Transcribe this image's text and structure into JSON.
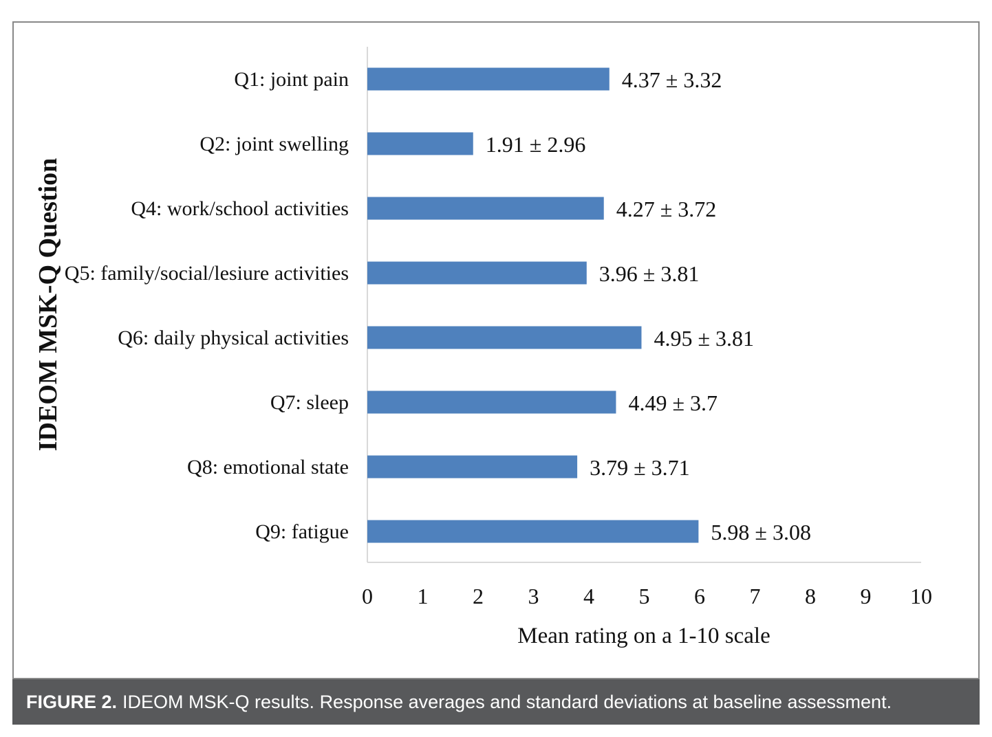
{
  "chart_data": {
    "type": "bar",
    "orientation": "horizontal",
    "categories": [
      "Q1: joint pain",
      "Q2: joint swelling",
      "Q4: work/school activities",
      "Q5: family/social/lesiure activities",
      "Q6: daily physical activities",
      "Q7: sleep",
      "Q8: emotional state",
      "Q9: fatigue"
    ],
    "values": [
      4.37,
      1.91,
      4.27,
      3.96,
      4.95,
      4.49,
      3.79,
      5.98
    ],
    "data_labels": [
      "4.37 ± 3.32",
      "1.91 ± 2.96",
      "4.27 ± 3.72",
      "3.96 ± 3.81",
      "4.95 ± 3.81",
      "4.49 ± 3.7",
      "3.79 ± 3.71",
      "5.98 ± 3.08"
    ],
    "xlabel": "Mean rating on a 1-10 scale",
    "ylabel": "IDEOM MSK-Q Question",
    "xlim": [
      0,
      10
    ],
    "x_ticks": [
      "0",
      "1",
      "2",
      "3",
      "4",
      "5",
      "6",
      "7",
      "8",
      "9",
      "10"
    ],
    "grid": false,
    "bar_color": "#4f81bd"
  },
  "caption": {
    "label": "FIGURE 2.",
    "text": "IDEOM MSK-Q results. Response averages and standard deviations at baseline assessment."
  }
}
